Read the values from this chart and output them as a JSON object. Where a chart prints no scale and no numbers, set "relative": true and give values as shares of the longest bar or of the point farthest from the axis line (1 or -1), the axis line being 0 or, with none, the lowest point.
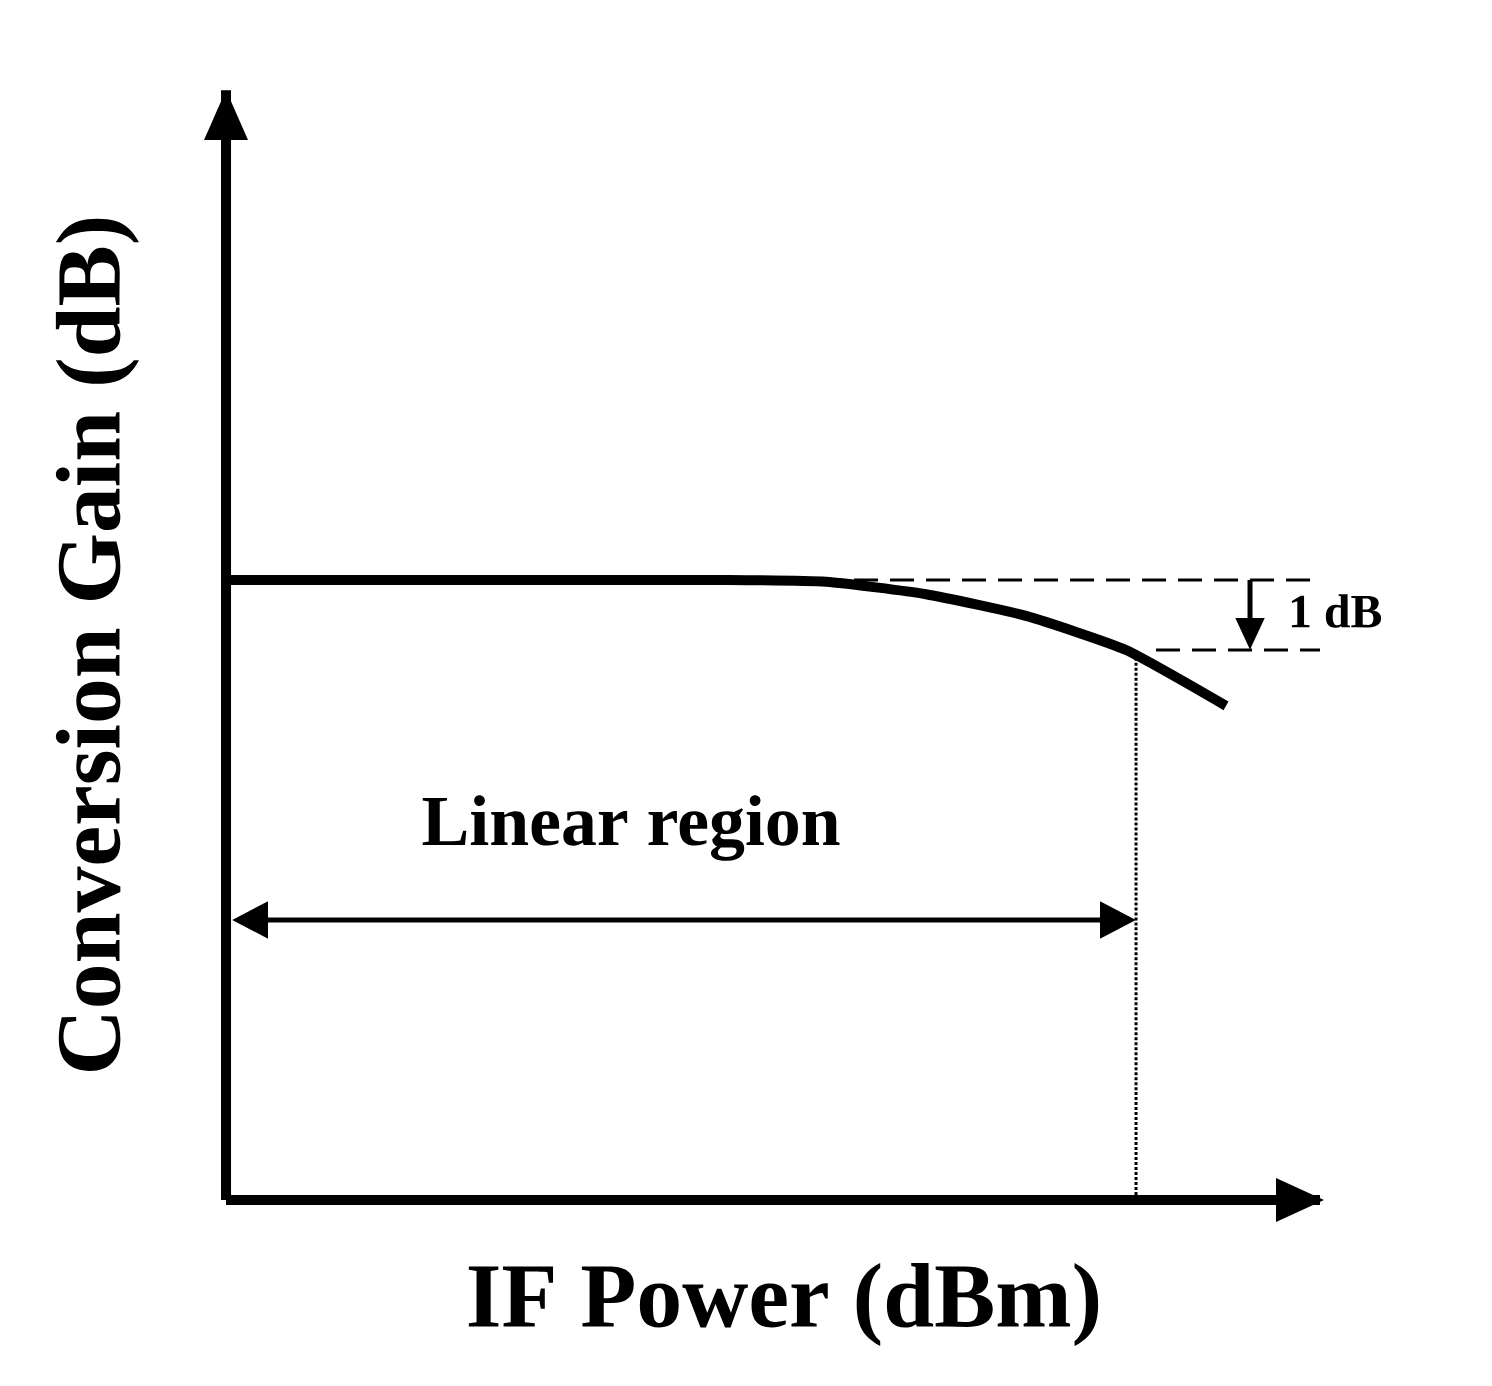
{
  "chart_data": {
    "type": "line",
    "relative": true,
    "xlabel": "IF Power (dBm)",
    "ylabel": "Conversion Gain (dB)",
    "categories": [
      null,
      null,
      null,
      null,
      null,
      null,
      null,
      null,
      null,
      null,
      null
    ],
    "series": [
      {
        "color": "#000000",
        "values": [
          1,
          1,
          1,
          1,
          1,
          1,
          0.997,
          0.977,
          0.942,
          0.887,
          0.797
        ]
      }
    ],
    "ref_lines": [
      {
        "axis": "y",
        "value": 1,
        "line_style": "dashed",
        "color": "#000000"
      },
      {
        "axis": "y",
        "value": 0.887,
        "line_style": "dashed",
        "color": "#000000"
      }
    ],
    "annotations": [
      "Linear region",
      "1 dB"
    ],
    "marker": "none",
    "line_style": "solid"
  }
}
